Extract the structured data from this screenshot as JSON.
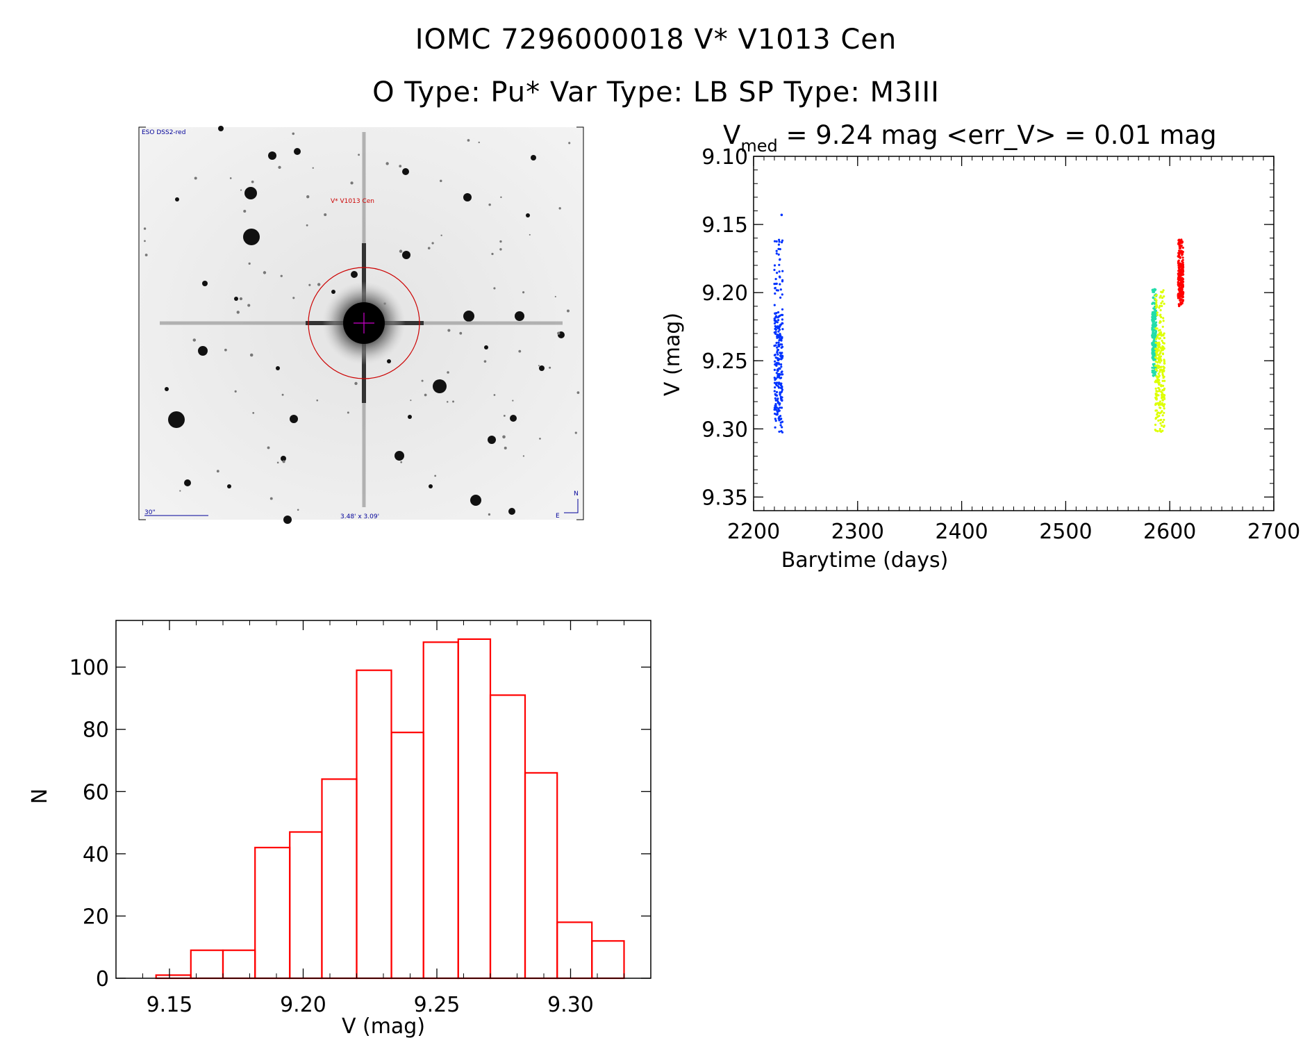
{
  "header": {
    "line1": "IOMC 7296000018    V* V1013 Cen",
    "line2": "O Type: Pu*  Var Type: LB  SP Type: M3III"
  },
  "finder": {
    "survey_label": "ESO DSS2-red",
    "target_label": "V* V1013 Cen",
    "scale_label": "30\"",
    "fov_label": "3.48' x 3.09'",
    "north_label": "N",
    "east_label": "E"
  },
  "colors": {
    "axis": "#000000",
    "histogram": "#ff0000",
    "finder_circle": "#cc0000",
    "finder_cross": "#cc00cc",
    "finder_text": "#000099",
    "series_blue": "#0033ff",
    "series_cyan": "#22ddaa",
    "series_yellow": "#ddff00",
    "series_red": "#ff0000"
  },
  "chart_data": [
    {
      "type": "scatter",
      "title_prefix": "V",
      "title_subscript": "med",
      "title_rest": " = 9.24 mag <err_V> = 0.01 mag",
      "xlabel": "Barytime (days)",
      "ylabel": "V (mag)",
      "xlim": [
        2200,
        2700
      ],
      "ylim": [
        9.1,
        9.36
      ],
      "y_inverted": true,
      "x_ticks": [
        "2200",
        "2300",
        "2400",
        "2500",
        "2600",
        "2700"
      ],
      "y_ticks": [
        "9.10",
        "9.15",
        "9.20",
        "9.25",
        "9.30",
        "9.35"
      ],
      "series": [
        {
          "color": "#0033ff",
          "x_range": [
            2220,
            2228
          ],
          "v_range": [
            9.16,
            9.308
          ],
          "v_center": 9.255,
          "outlier": [
            2227,
            9.143
          ]
        },
        {
          "color": "#22ddaa",
          "x_range": [
            2583,
            2587
          ],
          "v_range": [
            9.197,
            9.262
          ],
          "v_center": 9.232
        },
        {
          "color": "#ddff00",
          "x_range": [
            2586,
            2595
          ],
          "v_range": [
            9.198,
            9.303
          ],
          "v_center": 9.255
        },
        {
          "color": "#ff0000",
          "x_range": [
            2608,
            2613
          ],
          "v_range": [
            9.161,
            9.21
          ],
          "v_center": 9.19
        }
      ]
    },
    {
      "type": "bar",
      "xlabel": "V (mag)",
      "ylabel": "N",
      "xlim": [
        9.13,
        9.33
      ],
      "ylim": [
        0,
        115
      ],
      "x_ticks": [
        "9.15",
        "9.20",
        "9.25",
        "9.30"
      ],
      "y_ticks": [
        "0",
        "20",
        "40",
        "60",
        "80",
        "100"
      ],
      "bin_edges": [
        9.145,
        9.158,
        9.17,
        9.182,
        9.195,
        9.207,
        9.22,
        9.233,
        9.245,
        9.258,
        9.27,
        9.283,
        9.295,
        9.308,
        9.32
      ],
      "values": [
        1,
        9,
        9,
        42,
        47,
        64,
        99,
        79,
        108,
        109,
        91,
        66,
        18,
        12
      ]
    }
  ]
}
